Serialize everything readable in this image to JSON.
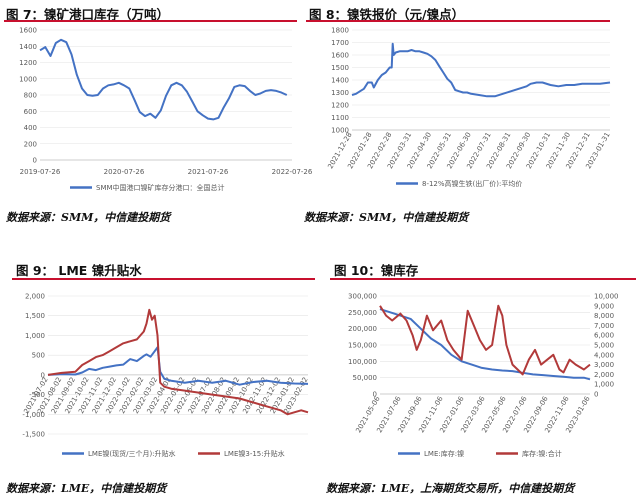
{
  "colors": {
    "blue": "#4472c4",
    "red": "#b23a3a",
    "title_rule": "#c8102e",
    "grid": "#e3e3e3"
  },
  "panels": {
    "p1": {
      "title": "图 7：镍矿港口库存（万吨）",
      "source": "数据来源：SMM，中信建投期货"
    },
    "p2": {
      "title": "图 8：镍铁报价（元/镍点）",
      "source": "数据来源：SMM，中信建投期货"
    },
    "p3": {
      "title": "图 9： LME 镍升贴水",
      "source": "数据来源：LME，中信建投期货"
    },
    "p4": {
      "title": "图 10：镍库存",
      "source": "数据来源：LME，上海期货交易所，中信建投期货"
    }
  },
  "chart_data": [
    {
      "type": "line",
      "title": "图 7：镍矿港口库存（万吨）",
      "ylim": [
        0,
        1600
      ],
      "yticks": [
        "0",
        "200",
        "400",
        "600",
        "800",
        "1000",
        "1200",
        "1400",
        "1600"
      ],
      "xticks": [
        "2019-07-26",
        "2020-07-26",
        "2021-07-26",
        "2022-07-26"
      ],
      "xlim": [
        0,
        48
      ],
      "series": [
        {
          "name": "SMM中国港口镍矿库存分港口：全国总计",
          "color": "#4472c4",
          "x": [
            0,
            1,
            2,
            3,
            4,
            5,
            6,
            7,
            8,
            9,
            10,
            11,
            12,
            13,
            14,
            15,
            16,
            17,
            18,
            19,
            20,
            21,
            22,
            23,
            24,
            25,
            26,
            27,
            28,
            29,
            30,
            31,
            32,
            33,
            34,
            35,
            36,
            37,
            38,
            39,
            40,
            41,
            42,
            43,
            44,
            45,
            46,
            47
          ],
          "values": [
            1350,
            1390,
            1280,
            1440,
            1480,
            1450,
            1300,
            1050,
            880,
            800,
            790,
            800,
            880,
            920,
            930,
            950,
            920,
            880,
            740,
            590,
            540,
            570,
            520,
            610,
            790,
            920,
            950,
            920,
            840,
            720,
            600,
            550,
            510,
            500,
            520,
            650,
            760,
            900,
            920,
            910,
            850,
            800,
            820,
            850,
            860,
            850,
            830,
            800
          ]
        }
      ]
    },
    {
      "type": "line",
      "title": "图 8：镍铁报价（元/镍点）",
      "ylim": [
        1000,
        1800
      ],
      "yticks": [
        "1000",
        "1100",
        "1200",
        "1300",
        "1400",
        "1500",
        "1600",
        "1700",
        "1800"
      ],
      "xticks": [
        "2021-12-28",
        "2022-01-28",
        "2022-02-28",
        "2022-03-31",
        "2022-04-30",
        "2022-05-31",
        "2022-06-30",
        "2022-07-31",
        "2022-08-31",
        "2022-09-30",
        "2022-10-31",
        "2022-11-30",
        "2022-12-31",
        "2023-01-31"
      ],
      "xlim": [
        0,
        13
      ],
      "series": [
        {
          "name": "8-12%高镍生铁(出厂价):平均价",
          "color": "#4472c4",
          "x": [
            0,
            0.2,
            0.4,
            0.6,
            0.8,
            1.0,
            1.1,
            1.3,
            1.5,
            1.7,
            1.9,
            2.0,
            2.05,
            2.1,
            2.2,
            2.4,
            2.6,
            2.8,
            3.0,
            3.2,
            3.4,
            3.6,
            3.8,
            4.0,
            4.2,
            4.4,
            4.6,
            4.8,
            5.0,
            5.2,
            5.4,
            5.6,
            5.8,
            6.0,
            6.4,
            6.8,
            7.2,
            7.6,
            8.0,
            8.4,
            8.8,
            9.0,
            9.3,
            9.6,
            10.0,
            10.4,
            10.8,
            11.2,
            11.6,
            12.0,
            12.5,
            13.0
          ],
          "values": [
            1280,
            1290,
            1310,
            1330,
            1380,
            1380,
            1340,
            1400,
            1440,
            1460,
            1500,
            1500,
            1690,
            1600,
            1620,
            1630,
            1630,
            1630,
            1640,
            1630,
            1630,
            1620,
            1610,
            1590,
            1560,
            1510,
            1460,
            1410,
            1380,
            1320,
            1310,
            1300,
            1300,
            1290,
            1280,
            1270,
            1270,
            1290,
            1310,
            1330,
            1350,
            1370,
            1380,
            1380,
            1360,
            1350,
            1360,
            1360,
            1370,
            1370,
            1370,
            1380
          ]
        }
      ]
    },
    {
      "type": "line",
      "title": "图 9： LME 镍升贴水",
      "ylim": [
        -1500,
        2000
      ],
      "yticks": [
        "-1,500",
        "-1,000",
        "-500",
        "0",
        "500",
        "1,000",
        "1,500",
        "2,000"
      ],
      "xticks": [
        "2021-07-02",
        "2021-08-02",
        "2021-09-02",
        "2021-10-02",
        "2021-11-02",
        "2021-12-02",
        "2022-01-02",
        "2022-02-02",
        "2022-03-02",
        "2022-04-02",
        "2022-05-02",
        "2022-06-02",
        "2022-07-02",
        "2022-08-02",
        "2022-09-02",
        "2022-10-02",
        "2022-11-02",
        "2022-12-02",
        "2023-01-02",
        "2023-02-02"
      ],
      "xlim": [
        0,
        19
      ],
      "series": [
        {
          "name": "LME镍(现货/三个月):升贴水",
          "color": "#4472c4",
          "x": [
            0,
            1,
            2,
            2.5,
            3,
            3.5,
            4,
            4.5,
            5,
            5.5,
            6,
            6.5,
            7,
            7.2,
            7.5,
            7.8,
            8,
            8.2,
            8.5,
            9,
            10,
            11,
            12,
            13,
            14,
            15,
            16,
            17,
            18,
            19
          ],
          "values": [
            0,
            20,
            10,
            60,
            150,
            120,
            180,
            210,
            240,
            260,
            400,
            350,
            480,
            520,
            460,
            600,
            700,
            80,
            -100,
            -150,
            -200,
            -150,
            -200,
            -150,
            -250,
            -180,
            -150,
            -200,
            -220,
            -230
          ]
        },
        {
          "name": "LME镍3-15:升贴水",
          "color": "#b23a3a",
          "x": [
            0,
            1,
            2,
            2.5,
            3,
            3.5,
            4,
            4.5,
            5,
            5.5,
            6,
            6.5,
            7,
            7.2,
            7.4,
            7.6,
            7.8,
            8,
            8.2,
            8.5,
            9,
            10,
            11,
            12,
            13,
            14,
            15,
            16,
            17,
            17.5,
            18,
            18.5,
            19
          ],
          "values": [
            0,
            50,
            80,
            250,
            350,
            450,
            500,
            600,
            700,
            800,
            850,
            900,
            1100,
            1300,
            1650,
            1400,
            1500,
            1000,
            -200,
            -300,
            -350,
            -400,
            -450,
            -500,
            -550,
            -600,
            -700,
            -800,
            -900,
            -1000,
            -950,
            -900,
            -950
          ]
        }
      ]
    },
    {
      "type": "line",
      "title": "图 10：镍库存",
      "ylim": [
        0,
        300000
      ],
      "yticks": [
        "0",
        "50,000",
        "100,000",
        "150,000",
        "200,000",
        "250,000",
        "300,000"
      ],
      "y2lim": [
        0,
        10000
      ],
      "y2ticks": [
        "0",
        "1,000",
        "2,000",
        "3,000",
        "4,000",
        "5,000",
        "6,000",
        "7,000",
        "8,000",
        "9,000",
        "10,000"
      ],
      "xticks": [
        "2021-05-06",
        "2021-07-06",
        "2021-09-06",
        "2021-11-06",
        "2022-01-06",
        "2022-03-06",
        "2022-05-06",
        "2022-07-06",
        "2022-09-06",
        "2022-11-06",
        "2023-01-06"
      ],
      "xlim": [
        0,
        10.3
      ],
      "series": [
        {
          "name": "LME:库存:镍",
          "color": "#4472c4",
          "axis": "left",
          "x": [
            0,
            0.5,
            1,
            1.5,
            2,
            2.5,
            3,
            3.5,
            4,
            4.5,
            5,
            5.5,
            6,
            6.5,
            7,
            7.5,
            8,
            8.5,
            9,
            9.5,
            10,
            10.3
          ],
          "values": [
            260000,
            250000,
            240000,
            230000,
            200000,
            170000,
            150000,
            120000,
            100000,
            90000,
            80000,
            75000,
            72000,
            70000,
            65000,
            60000,
            58000,
            55000,
            53000,
            50000,
            50000,
            45000
          ]
        },
        {
          "name": "库存:镍:合计",
          "color": "#b23a3a",
          "axis": "right",
          "x": [
            0,
            0.3,
            0.6,
            1.0,
            1.3,
            1.6,
            1.8,
            2.0,
            2.3,
            2.6,
            3.0,
            3.3,
            3.6,
            4.0,
            4.3,
            4.6,
            4.9,
            5.2,
            5.5,
            5.8,
            6.0,
            6.2,
            6.5,
            7.0,
            7.3,
            7.6,
            7.9,
            8.2,
            8.5,
            8.8,
            9.0,
            9.3,
            9.6,
            10.0,
            10.3
          ],
          "values": [
            9000,
            8000,
            7500,
            8200,
            7500,
            6000,
            4500,
            5500,
            8000,
            6500,
            7500,
            5500,
            4500,
            3500,
            8500,
            7000,
            5500,
            4500,
            5000,
            9000,
            8000,
            5000,
            3000,
            2000,
            3500,
            4500,
            3000,
            3500,
            4000,
            2500,
            2200,
            3500,
            3000,
            2500,
            3000
          ]
        }
      ]
    }
  ]
}
